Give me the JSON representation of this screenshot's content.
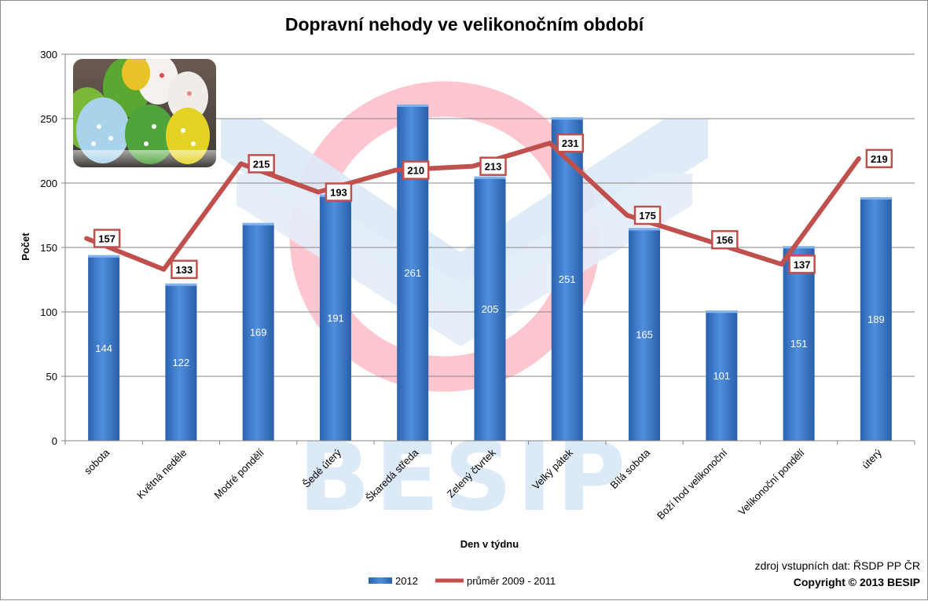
{
  "chart_data": {
    "type": "bar",
    "title": "Dopravní nehody ve velikonočním období",
    "xlabel": "Den v týdnu",
    "ylabel": "Počet",
    "ylim": [
      0,
      300
    ],
    "yticks": [
      0,
      50,
      100,
      150,
      200,
      250,
      300
    ],
    "grid": true,
    "legend_position": "bottom",
    "categories": [
      "sobota",
      "Květná neděle",
      "Modré pondělí",
      "Šedé úterý",
      "Škaredá středa",
      "Zelený čtvrtek",
      "Velký pátek",
      "Bílá sobota",
      "Boží hod velikonoční",
      "Velikonoční pondělí",
      "úterý"
    ],
    "series": [
      {
        "name": "2012",
        "type": "bar",
        "color": "#3a78c9",
        "values": [
          144,
          122,
          169,
          191,
          261,
          205,
          251,
          165,
          101,
          151,
          189
        ]
      },
      {
        "name": "průměr 2009 - 2011",
        "type": "line",
        "color": "#c0504d",
        "values": [
          157,
          133,
          215,
          193,
          210,
          213,
          231,
          175,
          156,
          137,
          219
        ]
      }
    ]
  },
  "source_note": "zdroj vstupních dat: ŘSDP PP ČR",
  "copyright": "Copyright © 2013  BESIP",
  "watermark": {
    "text": "BESIP",
    "colors": [
      "#ff8da1",
      "#5a9bd5"
    ]
  },
  "photo": {
    "description_icon": "easter-eggs-photo"
  }
}
